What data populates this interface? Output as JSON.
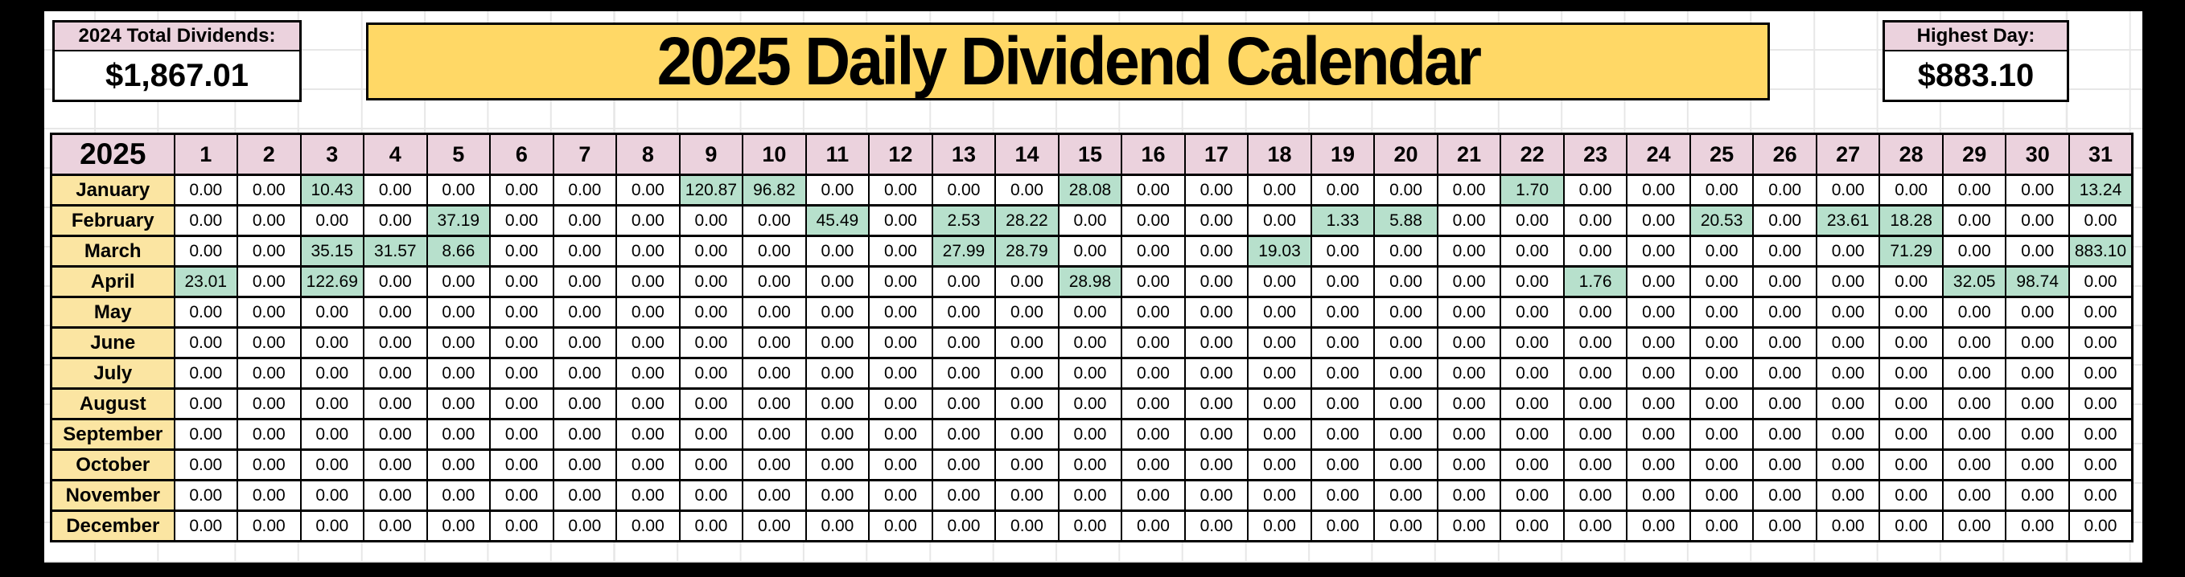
{
  "stats_left": {
    "label": "2024 Total Dividends:",
    "value": "$1,867.01"
  },
  "title": "2025 Daily Dividend Calendar",
  "stats_right": {
    "label": "Highest Day:",
    "value": "$883.10"
  },
  "calendar": {
    "year_label": "2025",
    "zero_display": "0.00",
    "day_headers": [
      "1",
      "2",
      "3",
      "4",
      "5",
      "6",
      "7",
      "8",
      "9",
      "10",
      "11",
      "12",
      "13",
      "14",
      "15",
      "16",
      "17",
      "18",
      "19",
      "20",
      "21",
      "22",
      "23",
      "24",
      "25",
      "26",
      "27",
      "28",
      "29",
      "30",
      "31"
    ],
    "months": [
      {
        "name": "January",
        "values": [
          "0.00",
          "0.00",
          "10.43",
          "0.00",
          "0.00",
          "0.00",
          "0.00",
          "0.00",
          "120.87",
          "96.82",
          "0.00",
          "0.00",
          "0.00",
          "0.00",
          "28.08",
          "0.00",
          "0.00",
          "0.00",
          "0.00",
          "0.00",
          "0.00",
          "1.70",
          "0.00",
          "0.00",
          "0.00",
          "0.00",
          "0.00",
          "0.00",
          "0.00",
          "0.00",
          "13.24"
        ]
      },
      {
        "name": "February",
        "values": [
          "0.00",
          "0.00",
          "0.00",
          "0.00",
          "37.19",
          "0.00",
          "0.00",
          "0.00",
          "0.00",
          "0.00",
          "45.49",
          "0.00",
          "2.53",
          "28.22",
          "0.00",
          "0.00",
          "0.00",
          "0.00",
          "1.33",
          "5.88",
          "0.00",
          "0.00",
          "0.00",
          "0.00",
          "20.53",
          "0.00",
          "23.61",
          "18.28",
          "0.00",
          "0.00",
          "0.00"
        ]
      },
      {
        "name": "March",
        "values": [
          "0.00",
          "0.00",
          "35.15",
          "31.57",
          "8.66",
          "0.00",
          "0.00",
          "0.00",
          "0.00",
          "0.00",
          "0.00",
          "0.00",
          "27.99",
          "28.79",
          "0.00",
          "0.00",
          "0.00",
          "19.03",
          "0.00",
          "0.00",
          "0.00",
          "0.00",
          "0.00",
          "0.00",
          "0.00",
          "0.00",
          "0.00",
          "71.29",
          "0.00",
          "0.00",
          "883.10"
        ]
      },
      {
        "name": "April",
        "values": [
          "23.01",
          "0.00",
          "122.69",
          "0.00",
          "0.00",
          "0.00",
          "0.00",
          "0.00",
          "0.00",
          "0.00",
          "0.00",
          "0.00",
          "0.00",
          "0.00",
          "28.98",
          "0.00",
          "0.00",
          "0.00",
          "0.00",
          "0.00",
          "0.00",
          "0.00",
          "1.76",
          "0.00",
          "0.00",
          "0.00",
          "0.00",
          "0.00",
          "32.05",
          "98.74",
          "0.00"
        ]
      },
      {
        "name": "May",
        "values": [
          "0.00",
          "0.00",
          "0.00",
          "0.00",
          "0.00",
          "0.00",
          "0.00",
          "0.00",
          "0.00",
          "0.00",
          "0.00",
          "0.00",
          "0.00",
          "0.00",
          "0.00",
          "0.00",
          "0.00",
          "0.00",
          "0.00",
          "0.00",
          "0.00",
          "0.00",
          "0.00",
          "0.00",
          "0.00",
          "0.00",
          "0.00",
          "0.00",
          "0.00",
          "0.00",
          "0.00"
        ]
      },
      {
        "name": "June",
        "values": [
          "0.00",
          "0.00",
          "0.00",
          "0.00",
          "0.00",
          "0.00",
          "0.00",
          "0.00",
          "0.00",
          "0.00",
          "0.00",
          "0.00",
          "0.00",
          "0.00",
          "0.00",
          "0.00",
          "0.00",
          "0.00",
          "0.00",
          "0.00",
          "0.00",
          "0.00",
          "0.00",
          "0.00",
          "0.00",
          "0.00",
          "0.00",
          "0.00",
          "0.00",
          "0.00",
          "0.00"
        ]
      },
      {
        "name": "July",
        "values": [
          "0.00",
          "0.00",
          "0.00",
          "0.00",
          "0.00",
          "0.00",
          "0.00",
          "0.00",
          "0.00",
          "0.00",
          "0.00",
          "0.00",
          "0.00",
          "0.00",
          "0.00",
          "0.00",
          "0.00",
          "0.00",
          "0.00",
          "0.00",
          "0.00",
          "0.00",
          "0.00",
          "0.00",
          "0.00",
          "0.00",
          "0.00",
          "0.00",
          "0.00",
          "0.00",
          "0.00"
        ]
      },
      {
        "name": "August",
        "values": [
          "0.00",
          "0.00",
          "0.00",
          "0.00",
          "0.00",
          "0.00",
          "0.00",
          "0.00",
          "0.00",
          "0.00",
          "0.00",
          "0.00",
          "0.00",
          "0.00",
          "0.00",
          "0.00",
          "0.00",
          "0.00",
          "0.00",
          "0.00",
          "0.00",
          "0.00",
          "0.00",
          "0.00",
          "0.00",
          "0.00",
          "0.00",
          "0.00",
          "0.00",
          "0.00",
          "0.00"
        ]
      },
      {
        "name": "September",
        "values": [
          "0.00",
          "0.00",
          "0.00",
          "0.00",
          "0.00",
          "0.00",
          "0.00",
          "0.00",
          "0.00",
          "0.00",
          "0.00",
          "0.00",
          "0.00",
          "0.00",
          "0.00",
          "0.00",
          "0.00",
          "0.00",
          "0.00",
          "0.00",
          "0.00",
          "0.00",
          "0.00",
          "0.00",
          "0.00",
          "0.00",
          "0.00",
          "0.00",
          "0.00",
          "0.00",
          "0.00"
        ]
      },
      {
        "name": "October",
        "values": [
          "0.00",
          "0.00",
          "0.00",
          "0.00",
          "0.00",
          "0.00",
          "0.00",
          "0.00",
          "0.00",
          "0.00",
          "0.00",
          "0.00",
          "0.00",
          "0.00",
          "0.00",
          "0.00",
          "0.00",
          "0.00",
          "0.00",
          "0.00",
          "0.00",
          "0.00",
          "0.00",
          "0.00",
          "0.00",
          "0.00",
          "0.00",
          "0.00",
          "0.00",
          "0.00",
          "0.00"
        ]
      },
      {
        "name": "November",
        "values": [
          "0.00",
          "0.00",
          "0.00",
          "0.00",
          "0.00",
          "0.00",
          "0.00",
          "0.00",
          "0.00",
          "0.00",
          "0.00",
          "0.00",
          "0.00",
          "0.00",
          "0.00",
          "0.00",
          "0.00",
          "0.00",
          "0.00",
          "0.00",
          "0.00",
          "0.00",
          "0.00",
          "0.00",
          "0.00",
          "0.00",
          "0.00",
          "0.00",
          "0.00",
          "0.00",
          "0.00"
        ]
      },
      {
        "name": "December",
        "values": [
          "0.00",
          "0.00",
          "0.00",
          "0.00",
          "0.00",
          "0.00",
          "0.00",
          "0.00",
          "0.00",
          "0.00",
          "0.00",
          "0.00",
          "0.00",
          "0.00",
          "0.00",
          "0.00",
          "0.00",
          "0.00",
          "0.00",
          "0.00",
          "0.00",
          "0.00",
          "0.00",
          "0.00",
          "0.00",
          "0.00",
          "0.00",
          "0.00",
          "0.00",
          "0.00",
          "0.00"
        ]
      }
    ]
  },
  "colors": {
    "header_pink": "#EBD2DD",
    "month_yellow": "#FBE5A2",
    "title_yellow": "#FFD866",
    "highlight_green": "#B7E0CC",
    "border_black": "#000000",
    "gridline_gray": "#E7E7E7",
    "surround_black": "#000000"
  }
}
